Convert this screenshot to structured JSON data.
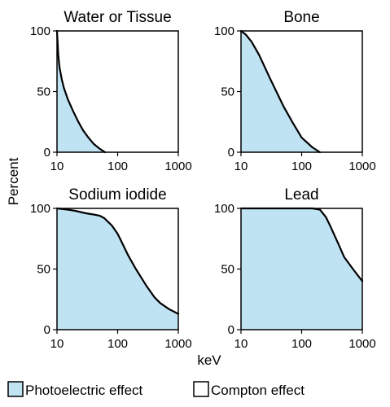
{
  "chart_data": [
    {
      "type": "area",
      "title": "Water or Tissue",
      "xscale": "log",
      "xlim": [
        10,
        1000
      ],
      "ylim": [
        0,
        100
      ],
      "xticks": [
        "10",
        "100",
        "1000"
      ],
      "yticks": [
        "0",
        "50",
        "100"
      ],
      "x": [
        10,
        10.5,
        11,
        12,
        13,
        15,
        18,
        22,
        27,
        33,
        40,
        50,
        62
      ],
      "values": [
        100,
        80,
        70,
        60,
        53,
        44,
        35,
        26,
        18,
        12,
        7,
        3,
        0
      ]
    },
    {
      "type": "area",
      "title": "Bone",
      "xscale": "log",
      "xlim": [
        10,
        1000
      ],
      "ylim": [
        0,
        100
      ],
      "xticks": [
        "10",
        "100",
        "1000"
      ],
      "yticks": [
        "0",
        "50",
        "100"
      ],
      "x": [
        10,
        12,
        15,
        20,
        30,
        40,
        50,
        70,
        100,
        150,
        200
      ],
      "values": [
        100,
        97,
        91,
        80,
        61,
        48,
        38,
        25,
        12,
        4,
        0
      ]
    },
    {
      "type": "area",
      "title": "Sodium iodide",
      "xscale": "log",
      "xlim": [
        10,
        1000
      ],
      "ylim": [
        0,
        100
      ],
      "xticks": [
        "10",
        "100",
        "1000"
      ],
      "yticks": [
        "0",
        "50",
        "100"
      ],
      "x": [
        10,
        15,
        20,
        30,
        40,
        50,
        60,
        80,
        100,
        120,
        150,
        200,
        300,
        400,
        500,
        700,
        1000
      ],
      "values": [
        100,
        99,
        98,
        96,
        95,
        94,
        92,
        86,
        79,
        71,
        61,
        50,
        36,
        27,
        22,
        17,
        13
      ]
    },
    {
      "type": "area",
      "title": "Lead",
      "xscale": "log",
      "xlim": [
        10,
        1000
      ],
      "ylim": [
        0,
        100
      ],
      "xticks": [
        "10",
        "100",
        "1000"
      ],
      "yticks": [
        "0",
        "50",
        "100"
      ],
      "x": [
        10,
        50,
        100,
        150,
        200,
        250,
        300,
        400,
        500,
        700,
        1000
      ],
      "values": [
        100,
        100,
        100,
        100,
        99,
        93,
        85,
        71,
        60,
        50,
        40
      ]
    }
  ],
  "shared_axes": {
    "ylabel": "Percent",
    "xlabel": "keV"
  },
  "legend": {
    "placement": "bottom",
    "items": [
      {
        "label": "Photoelectric effect",
        "color": "#bfe3f3"
      },
      {
        "label": "Compton effect",
        "color": "#ffffff"
      }
    ]
  },
  "colors": {
    "photoelectric_fill": "#bfe3f3",
    "line": "#000000"
  }
}
